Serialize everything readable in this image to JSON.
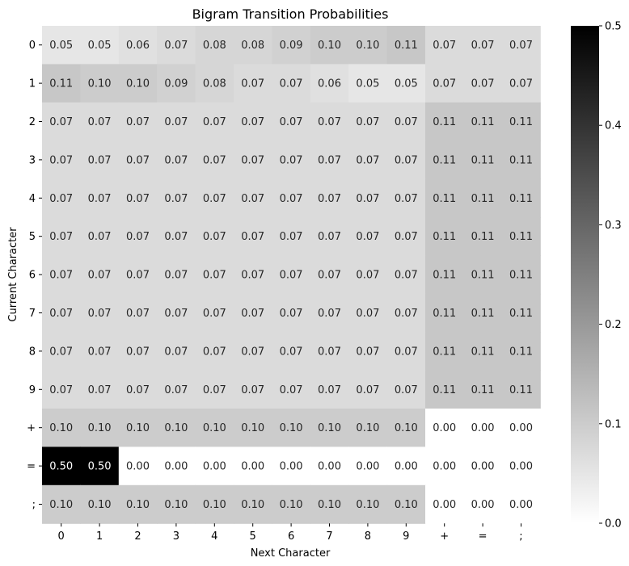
{
  "chart_data": {
    "type": "heatmap",
    "title": "Bigram Transition Probabilities",
    "xlabel": "Next Character",
    "ylabel": "Current Character",
    "x_categories": [
      "0",
      "1",
      "2",
      "3",
      "4",
      "5",
      "6",
      "7",
      "8",
      "9",
      "+",
      "=",
      ";"
    ],
    "y_categories": [
      "0",
      "1",
      "2",
      "3",
      "4",
      "5",
      "6",
      "7",
      "8",
      "9",
      "+",
      "=",
      ";"
    ],
    "values": [
      [
        0.05,
        0.05,
        0.06,
        0.07,
        0.08,
        0.08,
        0.09,
        0.1,
        0.1,
        0.11,
        0.07,
        0.07,
        0.07
      ],
      [
        0.11,
        0.1,
        0.1,
        0.09,
        0.08,
        0.07,
        0.07,
        0.06,
        0.05,
        0.05,
        0.07,
        0.07,
        0.07
      ],
      [
        0.07,
        0.07,
        0.07,
        0.07,
        0.07,
        0.07,
        0.07,
        0.07,
        0.07,
        0.07,
        0.11,
        0.11,
        0.11
      ],
      [
        0.07,
        0.07,
        0.07,
        0.07,
        0.07,
        0.07,
        0.07,
        0.07,
        0.07,
        0.07,
        0.11,
        0.11,
        0.11
      ],
      [
        0.07,
        0.07,
        0.07,
        0.07,
        0.07,
        0.07,
        0.07,
        0.07,
        0.07,
        0.07,
        0.11,
        0.11,
        0.11
      ],
      [
        0.07,
        0.07,
        0.07,
        0.07,
        0.07,
        0.07,
        0.07,
        0.07,
        0.07,
        0.07,
        0.11,
        0.11,
        0.11
      ],
      [
        0.07,
        0.07,
        0.07,
        0.07,
        0.07,
        0.07,
        0.07,
        0.07,
        0.07,
        0.07,
        0.11,
        0.11,
        0.11
      ],
      [
        0.07,
        0.07,
        0.07,
        0.07,
        0.07,
        0.07,
        0.07,
        0.07,
        0.07,
        0.07,
        0.11,
        0.11,
        0.11
      ],
      [
        0.07,
        0.07,
        0.07,
        0.07,
        0.07,
        0.07,
        0.07,
        0.07,
        0.07,
        0.07,
        0.11,
        0.11,
        0.11
      ],
      [
        0.07,
        0.07,
        0.07,
        0.07,
        0.07,
        0.07,
        0.07,
        0.07,
        0.07,
        0.07,
        0.11,
        0.11,
        0.11
      ],
      [
        0.1,
        0.1,
        0.1,
        0.1,
        0.1,
        0.1,
        0.1,
        0.1,
        0.1,
        0.1,
        0.0,
        0.0,
        0.0
      ],
      [
        0.5,
        0.5,
        0.0,
        0.0,
        0.0,
        0.0,
        0.0,
        0.0,
        0.0,
        0.0,
        0.0,
        0.0,
        0.0
      ],
      [
        0.1,
        0.1,
        0.1,
        0.1,
        0.1,
        0.1,
        0.1,
        0.1,
        0.1,
        0.1,
        0.0,
        0.0,
        0.0
      ]
    ],
    "value_format": "0.00",
    "colormap": {
      "low_color": "#ffffff",
      "high_color": "#000000",
      "vmin": 0,
      "vmax": 0.5
    },
    "colorbar": {
      "ticks": [
        0.0,
        0.1,
        0.2,
        0.3,
        0.4,
        0.5
      ],
      "tick_labels": [
        "0.0",
        "0.1",
        "0.2",
        "0.3",
        "0.4",
        "0.5"
      ]
    }
  }
}
